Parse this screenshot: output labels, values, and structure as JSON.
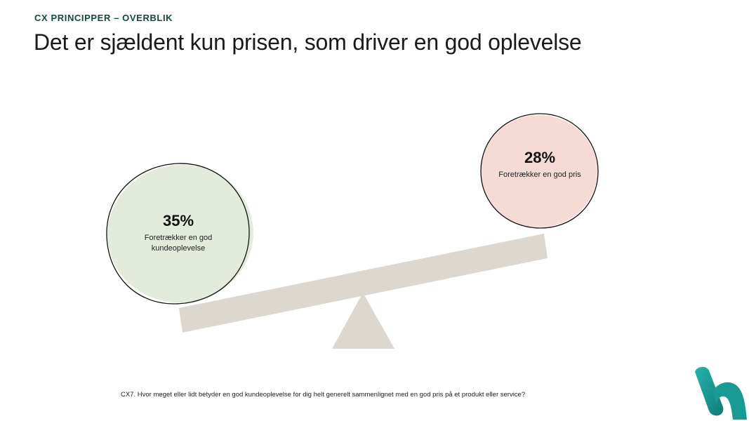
{
  "header": {
    "kicker": "CX PRINCIPPER – OVERBLIK",
    "title": "Det er sjældent kun prisen, som driver en god oplevelse"
  },
  "left_bubble": {
    "percent": "35%",
    "label": "Foretrækker en god kundeoplevelse",
    "value": 35,
    "color": "#e3ebdc"
  },
  "right_bubble": {
    "percent": "28%",
    "label": "Foretrækker en god pris",
    "value": 28,
    "color": "#f6dad5"
  },
  "footnote": "CX7. Hvor meget eller lidt betyder en god kundeoplevelse for dig helt generelt sammenlignet med en god pris på et produkt eller service?",
  "colors": {
    "kicker": "#0f4b3f",
    "seesaw": "#dcd8cf",
    "logo_teal": "#1a9a95"
  },
  "icons": {
    "brand": "brand-logo-icon"
  }
}
